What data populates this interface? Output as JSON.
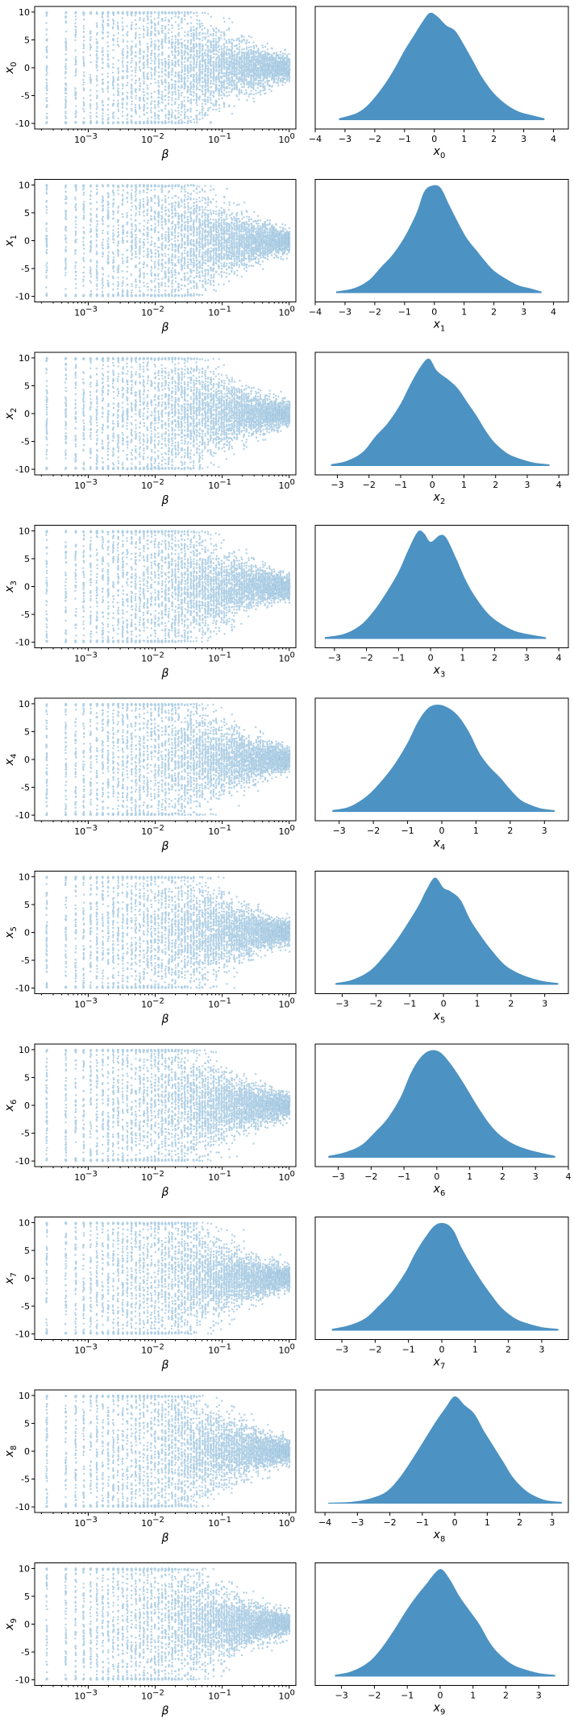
{
  "chart_data": {
    "type": "grid of scatter (log x) and density plots",
    "color": "#1f77b4",
    "rows": 10,
    "variables": [
      {
        "sub": "0",
        "kde": {
          "xlim": [
            -4.0,
            4.5
          ],
          "xticks": [
            -4,
            -3,
            -2,
            -1,
            0,
            1,
            2,
            3,
            4
          ],
          "x": [
            -3.2,
            -2.6,
            -2.2,
            -1.8,
            -1.4,
            -1.0,
            -0.7,
            -0.4,
            -0.15,
            0.1,
            0.4,
            0.7,
            1.0,
            1.3,
            1.6,
            2.0,
            2.4,
            2.8,
            3.2,
            3.7
          ],
          "y": [
            0.01,
            0.04,
            0.09,
            0.17,
            0.27,
            0.39,
            0.47,
            0.55,
            0.6,
            0.58,
            0.53,
            0.5,
            0.42,
            0.33,
            0.24,
            0.15,
            0.09,
            0.05,
            0.03,
            0.01
          ]
        }
      },
      {
        "sub": "1",
        "kde": {
          "xlim": [
            -4.0,
            4.5
          ],
          "xticks": [
            -4,
            -3,
            -2,
            -1,
            0,
            1,
            2,
            3,
            4
          ],
          "x": [
            -3.3,
            -2.7,
            -2.2,
            -1.8,
            -1.4,
            -1.0,
            -0.6,
            -0.35,
            -0.1,
            0.2,
            0.5,
            0.8,
            1.1,
            1.4,
            1.7,
            2.0,
            2.4,
            2.8,
            3.2,
            3.6
          ],
          "y": [
            0.01,
            0.03,
            0.08,
            0.16,
            0.24,
            0.35,
            0.5,
            0.63,
            0.67,
            0.66,
            0.55,
            0.44,
            0.34,
            0.27,
            0.2,
            0.14,
            0.09,
            0.05,
            0.03,
            0.01
          ]
        }
      },
      {
        "sub": "2",
        "kde": {
          "xlim": [
            -3.7,
            4.3
          ],
          "xticks": [
            -3,
            -2,
            -1,
            0,
            1,
            2,
            3,
            4
          ],
          "x": [
            -3.2,
            -2.7,
            -2.2,
            -1.8,
            -1.4,
            -1.0,
            -0.7,
            -0.35,
            -0.1,
            0.15,
            0.5,
            0.8,
            1.1,
            1.4,
            1.7,
            2.0,
            2.4,
            2.8,
            3.2,
            3.7
          ],
          "y": [
            0.01,
            0.03,
            0.08,
            0.17,
            0.25,
            0.36,
            0.47,
            0.58,
            0.62,
            0.55,
            0.5,
            0.45,
            0.37,
            0.29,
            0.2,
            0.13,
            0.07,
            0.04,
            0.02,
            0.01
          ]
        }
      },
      {
        "sub": "3",
        "kde": {
          "xlim": [
            -3.6,
            4.3
          ],
          "xticks": [
            -3,
            -2,
            -1,
            0,
            1,
            2,
            3,
            4
          ],
          "x": [
            -3.3,
            -2.7,
            -2.2,
            -1.8,
            -1.4,
            -1.0,
            -0.7,
            -0.4,
            -0.2,
            0.0,
            0.3,
            0.5,
            0.8,
            1.1,
            1.4,
            1.8,
            2.2,
            2.6,
            3.0,
            3.6
          ],
          "y": [
            0.01,
            0.03,
            0.08,
            0.16,
            0.27,
            0.4,
            0.53,
            0.64,
            0.63,
            0.58,
            0.62,
            0.6,
            0.48,
            0.35,
            0.25,
            0.15,
            0.09,
            0.05,
            0.03,
            0.01
          ]
        }
      },
      {
        "sub": "4",
        "kde": {
          "xlim": [
            -3.7,
            3.7
          ],
          "xticks": [
            -3,
            -2,
            -1,
            0,
            1,
            2,
            3
          ],
          "x": [
            -3.2,
            -2.7,
            -2.2,
            -1.8,
            -1.4,
            -1.0,
            -0.7,
            -0.4,
            -0.1,
            0.2,
            0.5,
            0.8,
            1.1,
            1.4,
            1.7,
            2.0,
            2.3,
            2.6,
            2.9,
            3.3
          ],
          "y": [
            0.01,
            0.03,
            0.09,
            0.17,
            0.27,
            0.4,
            0.52,
            0.6,
            0.62,
            0.6,
            0.55,
            0.46,
            0.34,
            0.26,
            0.2,
            0.13,
            0.07,
            0.04,
            0.02,
            0.01
          ]
        }
      },
      {
        "sub": "5",
        "kde": {
          "xlim": [
            -3.8,
            3.7
          ],
          "xticks": [
            -3,
            -2,
            -1,
            0,
            1,
            2,
            3
          ],
          "x": [
            -3.2,
            -2.7,
            -2.2,
            -1.8,
            -1.4,
            -1.0,
            -0.7,
            -0.5,
            -0.25,
            0.0,
            0.2,
            0.5,
            0.8,
            1.1,
            1.4,
            1.8,
            2.2,
            2.6,
            3.0,
            3.4
          ],
          "y": [
            0.01,
            0.03,
            0.08,
            0.16,
            0.26,
            0.38,
            0.48,
            0.56,
            0.63,
            0.57,
            0.55,
            0.5,
            0.38,
            0.29,
            0.21,
            0.12,
            0.07,
            0.04,
            0.02,
            0.01
          ]
        }
      },
      {
        "sub": "6",
        "kde": {
          "xlim": [
            -3.7,
            4.0
          ],
          "xticks": [
            -3,
            -2,
            -1,
            0,
            1,
            2,
            3,
            4
          ],
          "x": [
            -3.3,
            -2.8,
            -2.3,
            -1.9,
            -1.5,
            -1.1,
            -0.8,
            -0.5,
            -0.2,
            0.1,
            0.4,
            0.7,
            1.0,
            1.3,
            1.6,
            1.9,
            2.3,
            2.7,
            3.1,
            3.6
          ],
          "y": [
            0.01,
            0.03,
            0.07,
            0.14,
            0.22,
            0.34,
            0.47,
            0.56,
            0.6,
            0.59,
            0.53,
            0.45,
            0.36,
            0.27,
            0.19,
            0.13,
            0.08,
            0.05,
            0.03,
            0.01
          ]
        }
      },
      {
        "sub": "7",
        "kde": {
          "xlim": [
            -3.8,
            3.8
          ],
          "xticks": [
            -3,
            -2,
            -1,
            0,
            1,
            2,
            3
          ],
          "x": [
            -3.3,
            -2.8,
            -2.3,
            -1.9,
            -1.5,
            -1.1,
            -0.8,
            -0.5,
            -0.2,
            0.1,
            0.35,
            0.6,
            0.9,
            1.2,
            1.5,
            1.8,
            2.2,
            2.6,
            3.0,
            3.5
          ],
          "y": [
            0.01,
            0.03,
            0.07,
            0.14,
            0.22,
            0.33,
            0.44,
            0.53,
            0.6,
            0.61,
            0.57,
            0.47,
            0.37,
            0.28,
            0.2,
            0.13,
            0.07,
            0.04,
            0.02,
            0.01
          ]
        }
      },
      {
        "sub": "8",
        "kde": {
          "xlim": [
            -4.3,
            3.5
          ],
          "xticks": [
            -4,
            -3,
            -2,
            -1,
            0,
            1,
            2,
            3
          ],
          "x": [
            -3.9,
            -3.2,
            -2.6,
            -2.1,
            -1.7,
            -1.3,
            -0.9,
            -0.6,
            -0.3,
            0.0,
            0.3,
            0.6,
            0.9,
            1.2,
            1.5,
            1.8,
            2.1,
            2.4,
            2.8,
            3.3
          ],
          "y": [
            0.005,
            0.01,
            0.03,
            0.07,
            0.15,
            0.26,
            0.38,
            0.47,
            0.55,
            0.62,
            0.57,
            0.52,
            0.42,
            0.33,
            0.24,
            0.15,
            0.09,
            0.05,
            0.02,
            0.01
          ]
        }
      },
      {
        "sub": "9",
        "kde": {
          "xlim": [
            -3.8,
            3.9
          ],
          "xticks": [
            -3,
            -2,
            -1,
            0,
            1,
            2,
            3
          ],
          "x": [
            -3.2,
            -2.7,
            -2.2,
            -1.8,
            -1.4,
            -1.0,
            -0.7,
            -0.4,
            -0.15,
            0.05,
            0.3,
            0.6,
            0.9,
            1.2,
            1.5,
            1.8,
            2.2,
            2.6,
            3.0,
            3.5
          ],
          "y": [
            0.01,
            0.03,
            0.08,
            0.16,
            0.27,
            0.39,
            0.47,
            0.54,
            0.6,
            0.62,
            0.56,
            0.46,
            0.38,
            0.3,
            0.2,
            0.13,
            0.07,
            0.04,
            0.02,
            0.01
          ]
        }
      }
    ],
    "scatter": {
      "xscale": "log",
      "xlim_log10": [
        -3.8,
        0.1
      ],
      "ylim": [
        -11,
        11
      ],
      "yticks": [
        -10,
        -5,
        0,
        5,
        10
      ],
      "xtick_exponents": [
        "-3",
        "-2",
        "-1",
        "0"
      ],
      "xlabel": "β"
    }
  }
}
